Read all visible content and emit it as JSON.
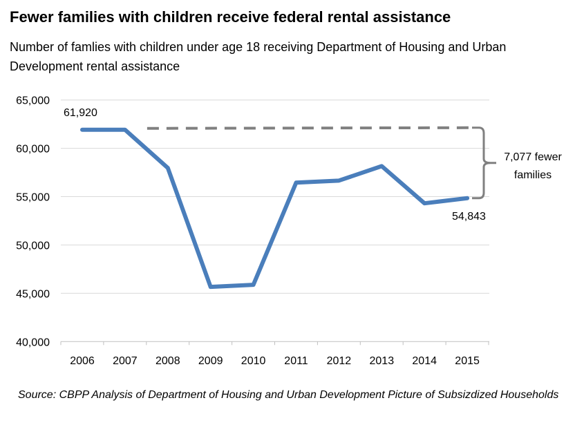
{
  "chart_data": {
    "type": "line",
    "title": "Fewer families with children receive federal rental assistance",
    "subtitle": "Number of famlies with children under age 18 receiving Department of Housing and Urban Development rental assistance",
    "source": "Source: CBPP Analysis of Department of Housing and Urban Development Picture of Subsizdized Households",
    "categories": [
      "2006",
      "2007",
      "2008",
      "2009",
      "2010",
      "2011",
      "2012",
      "2013",
      "2014",
      "2015"
    ],
    "series": [
      {
        "values": [
          61920,
          61920,
          57970,
          45660,
          45880,
          56450,
          56660,
          58160,
          54310,
          54843
        ],
        "color": "#4a7ebb"
      }
    ],
    "data_labels": [
      {
        "category": "2006",
        "text": "61,920"
      },
      {
        "category": "2015",
        "text": "54,843"
      }
    ],
    "reference_line": {
      "value": 61920,
      "from": "2007",
      "to": "2015",
      "style": "dashed",
      "color": "#808080"
    },
    "annotation": {
      "lines": [
        "7,077 fewer",
        "families"
      ],
      "color": "#808080"
    },
    "ylim": [
      40000,
      65000
    ],
    "yticks": [
      40000,
      45000,
      50000,
      55000,
      60000,
      65000
    ],
    "ytick_labels": [
      "40,000",
      "45,000",
      "50,000",
      "55,000",
      "60,000",
      "65,000"
    ],
    "grid": true,
    "xlabel": "",
    "ylabel": ""
  }
}
